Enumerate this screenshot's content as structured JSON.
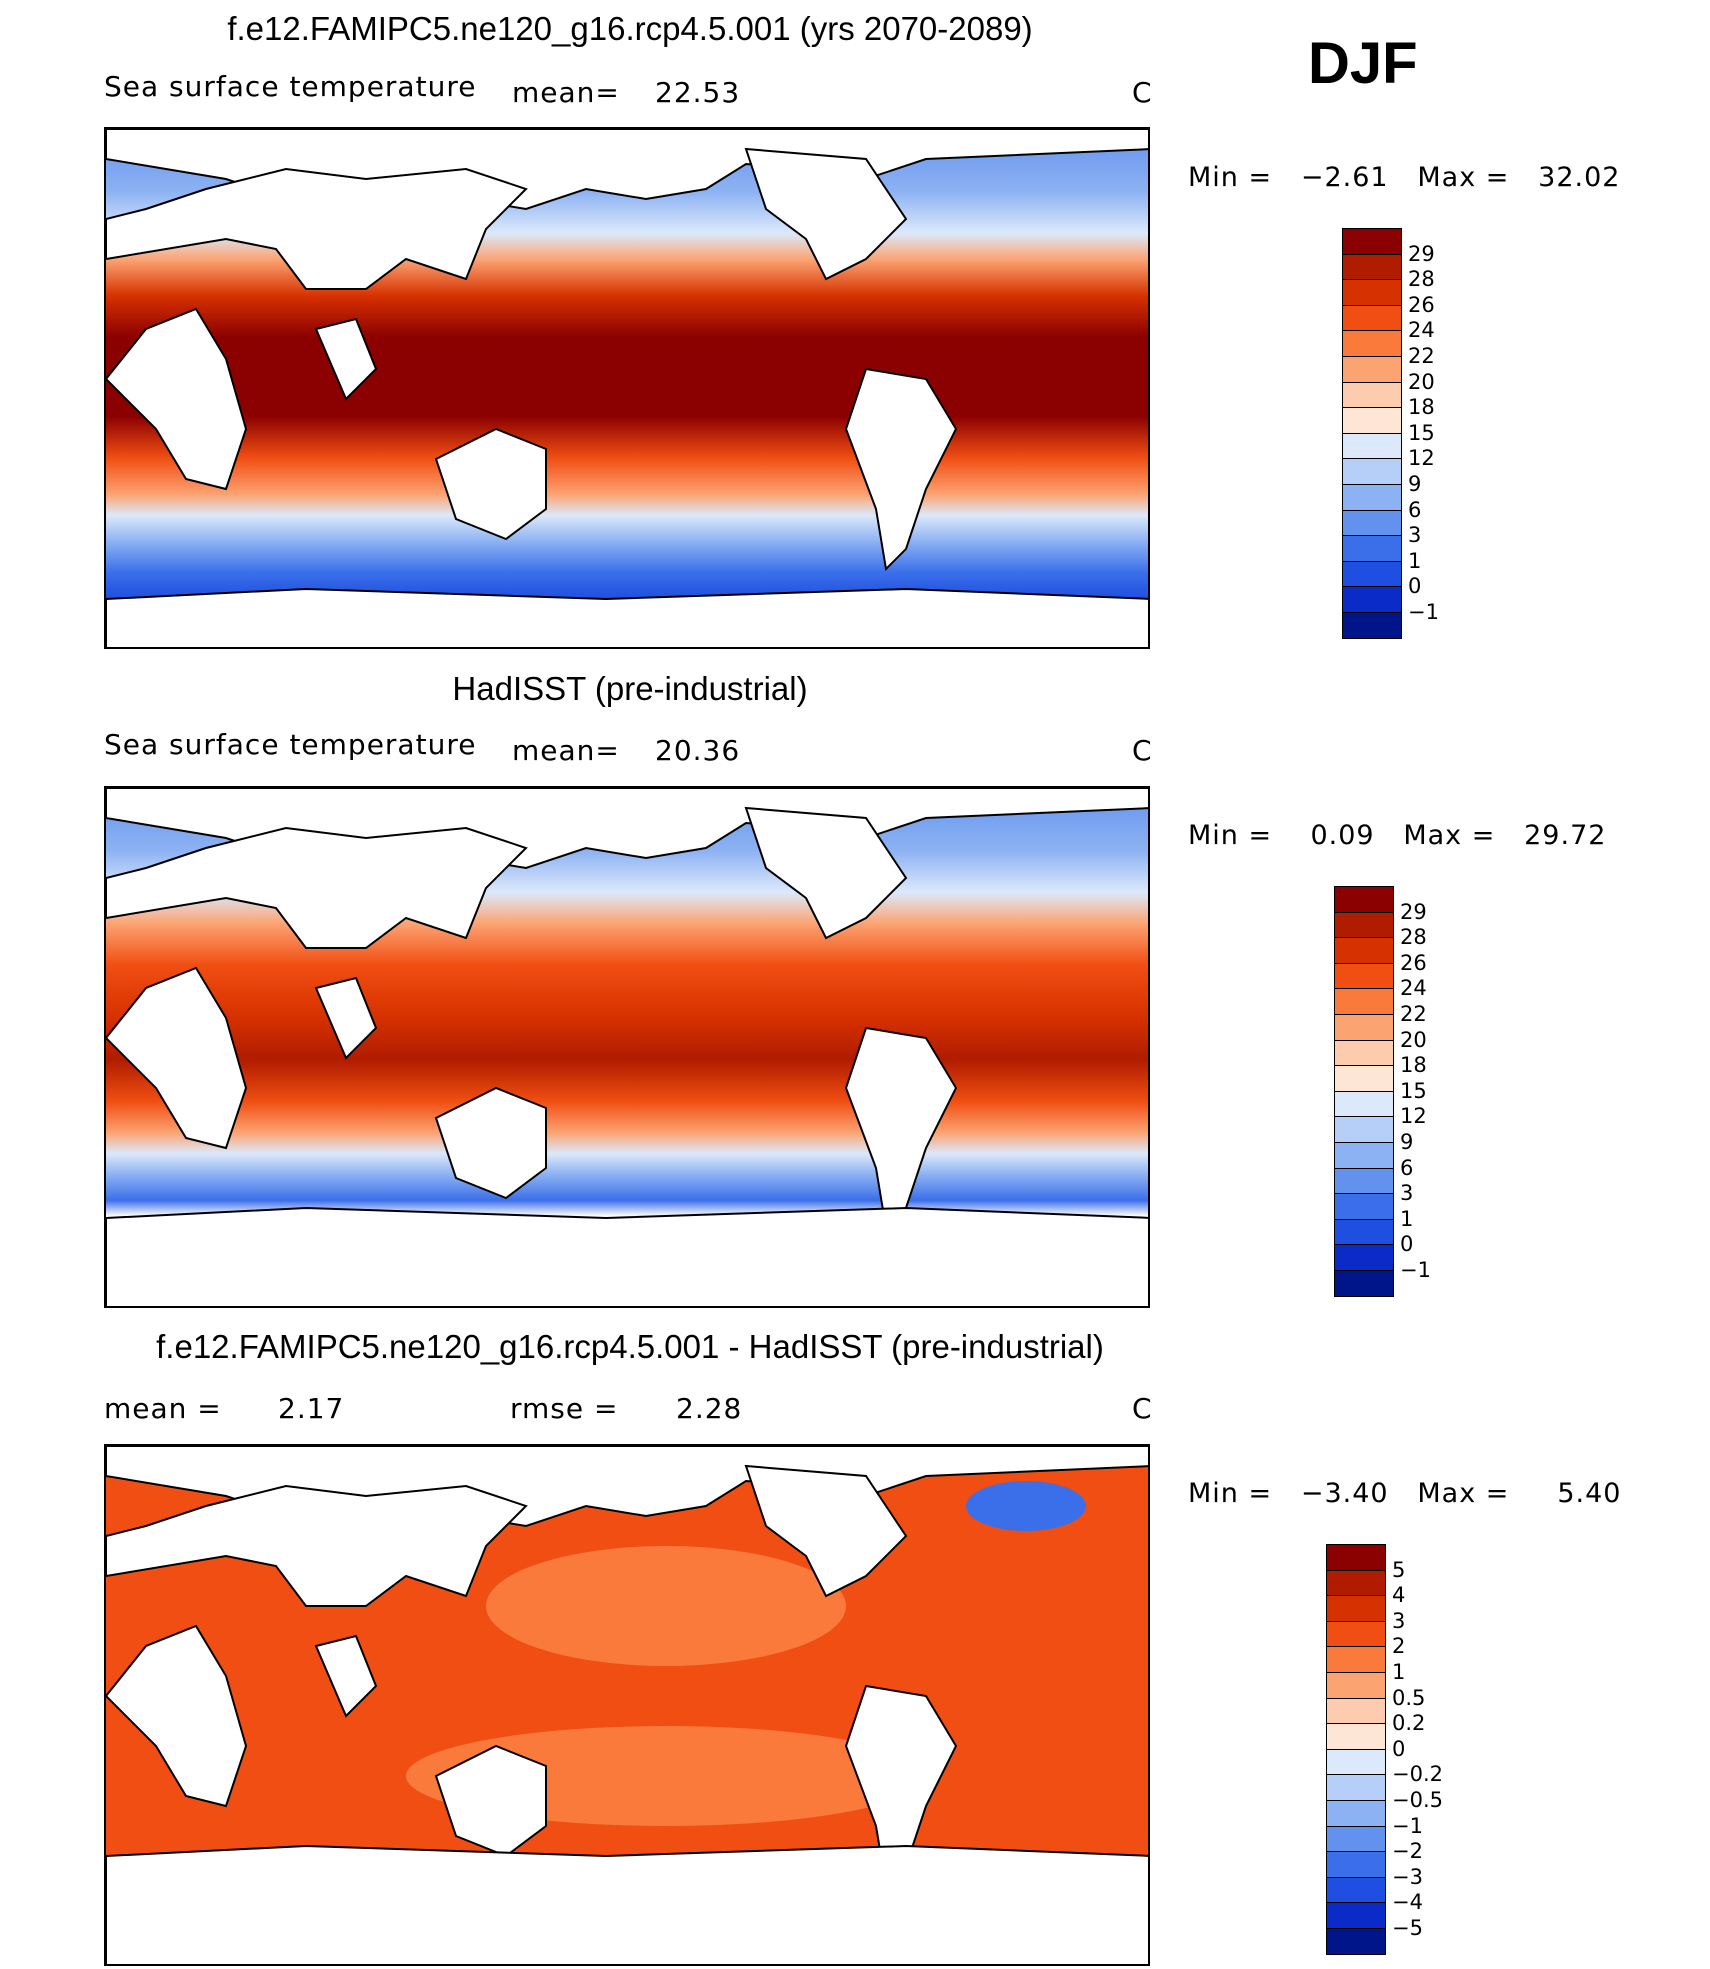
{
  "season": "DJF",
  "panels": [
    {
      "title": "f.e12.FAMIPC5.ne120_g16.rcp4.5.001 (yrs 2070-2089)",
      "left_label": "Sea surface temperature",
      "mean_label": "mean=",
      "mean_value": "22.53",
      "units": "C",
      "min_label": "Min =",
      "min_value": "−2.61",
      "max_label": "Max =",
      "max_value": "32.02",
      "colorbar": {
        "levels": [
          "29",
          "28",
          "26",
          "24",
          "22",
          "20",
          "18",
          "15",
          "12",
          "9",
          "6",
          "3",
          "1",
          "0",
          "−1"
        ],
        "colors": [
          "#8b0000",
          "#b01c00",
          "#d63100",
          "#f04e12",
          "#fa7a3c",
          "#fca372",
          "#fdcbad",
          "#fde6d6",
          "#dce9fb",
          "#b5cff8",
          "#8db2f3",
          "#6392ee",
          "#3b6fea",
          "#1f4fe0",
          "#0a2bc8",
          "#001589"
        ]
      }
    },
    {
      "title": "HadISST (pre-industrial)",
      "left_label": "Sea surface temperature",
      "mean_label": "mean=",
      "mean_value": "20.36",
      "units": "C",
      "min_label": "Min =",
      "min_value": "0.09",
      "max_label": "Max =",
      "max_value": "29.72",
      "colorbar": {
        "levels": [
          "29",
          "28",
          "26",
          "24",
          "22",
          "20",
          "18",
          "15",
          "12",
          "9",
          "6",
          "3",
          "1",
          "0",
          "−1"
        ],
        "colors": [
          "#8b0000",
          "#b01c00",
          "#d63100",
          "#f04e12",
          "#fa7a3c",
          "#fca372",
          "#fdcbad",
          "#fde6d6",
          "#dce9fb",
          "#b5cff8",
          "#8db2f3",
          "#6392ee",
          "#3b6fea",
          "#1f4fe0",
          "#0a2bc8",
          "#001589"
        ]
      }
    },
    {
      "title": "f.e12.FAMIPC5.ne120_g16.rcp4.5.001 - HadISST (pre-industrial)",
      "mean_label": "mean =",
      "mean_value": "2.17",
      "rmse_label": "rmse =",
      "rmse_value": "2.28",
      "units": "C",
      "min_label": "Min =",
      "min_value": "−3.40",
      "max_label": "Max =",
      "max_value": "5.40",
      "colorbar": {
        "levels": [
          "5",
          "4",
          "3",
          "2",
          "1",
          "0.5",
          "0.2",
          "0",
          "−0.2",
          "−0.5",
          "−1",
          "−2",
          "−3",
          "−4",
          "−5"
        ],
        "colors": [
          "#8b0000",
          "#b01c00",
          "#d63100",
          "#f04e12",
          "#fa7a3c",
          "#fca372",
          "#fdcbad",
          "#fde6d6",
          "#dce9fb",
          "#b5cff8",
          "#8db2f3",
          "#6392ee",
          "#3b6fea",
          "#1f4fe0",
          "#0a2bc8",
          "#001589"
        ]
      }
    }
  ]
}
